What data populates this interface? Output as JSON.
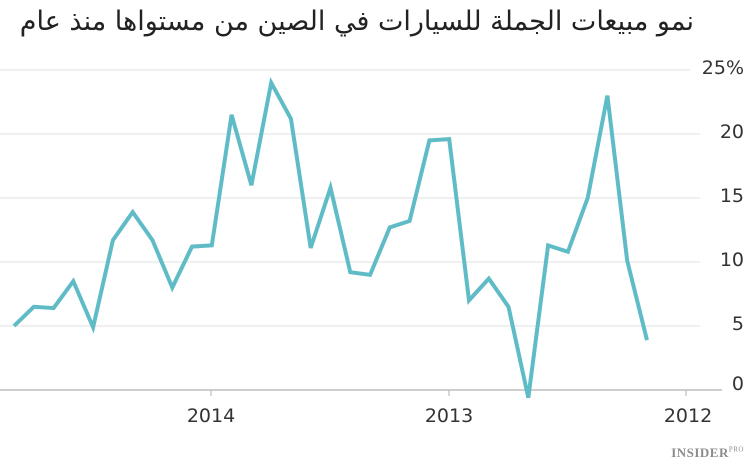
{
  "chart_data": {
    "type": "line",
    "title": "نمو مبيعات الجملة للسيارات في الصين من مستواها منذ عام",
    "xlabel": "",
    "ylabel": "",
    "ylim": [
      0,
      25
    ],
    "yticks": [
      "25%",
      "20",
      "15",
      "10",
      "5",
      "0"
    ],
    "xticks": [
      "2014",
      "2013",
      "2012"
    ],
    "x_direction": "right-to-left (newest on left)",
    "grid": true,
    "legend": null,
    "line_color": "#5fbcc6",
    "series": [
      {
        "name": "growth",
        "values": [
          5.0,
          6.5,
          6.4,
          8.5,
          4.9,
          11.7,
          13.9,
          11.7,
          8.0,
          11.2,
          11.3,
          21.5,
          16.0,
          24.0,
          21.2,
          11.1,
          15.8,
          9.2,
          9.0,
          12.7,
          13.2,
          19.5,
          19.6,
          7.0,
          8.7,
          6.5,
          -0.6,
          11.3,
          10.8,
          15.0,
          23.0,
          10.1,
          3.9
        ]
      }
    ]
  },
  "title": "نمو مبيعات الجملة للسيارات في الصين من مستواها منذ عام",
  "y_axis": {
    "labels": [
      "25%",
      "20",
      "15",
      "10",
      "5",
      "0"
    ]
  },
  "x_axis": {
    "labels": [
      "2014",
      "2013",
      "2012"
    ]
  },
  "brand": {
    "name": "INSIDER",
    "suffix": "PRO"
  }
}
